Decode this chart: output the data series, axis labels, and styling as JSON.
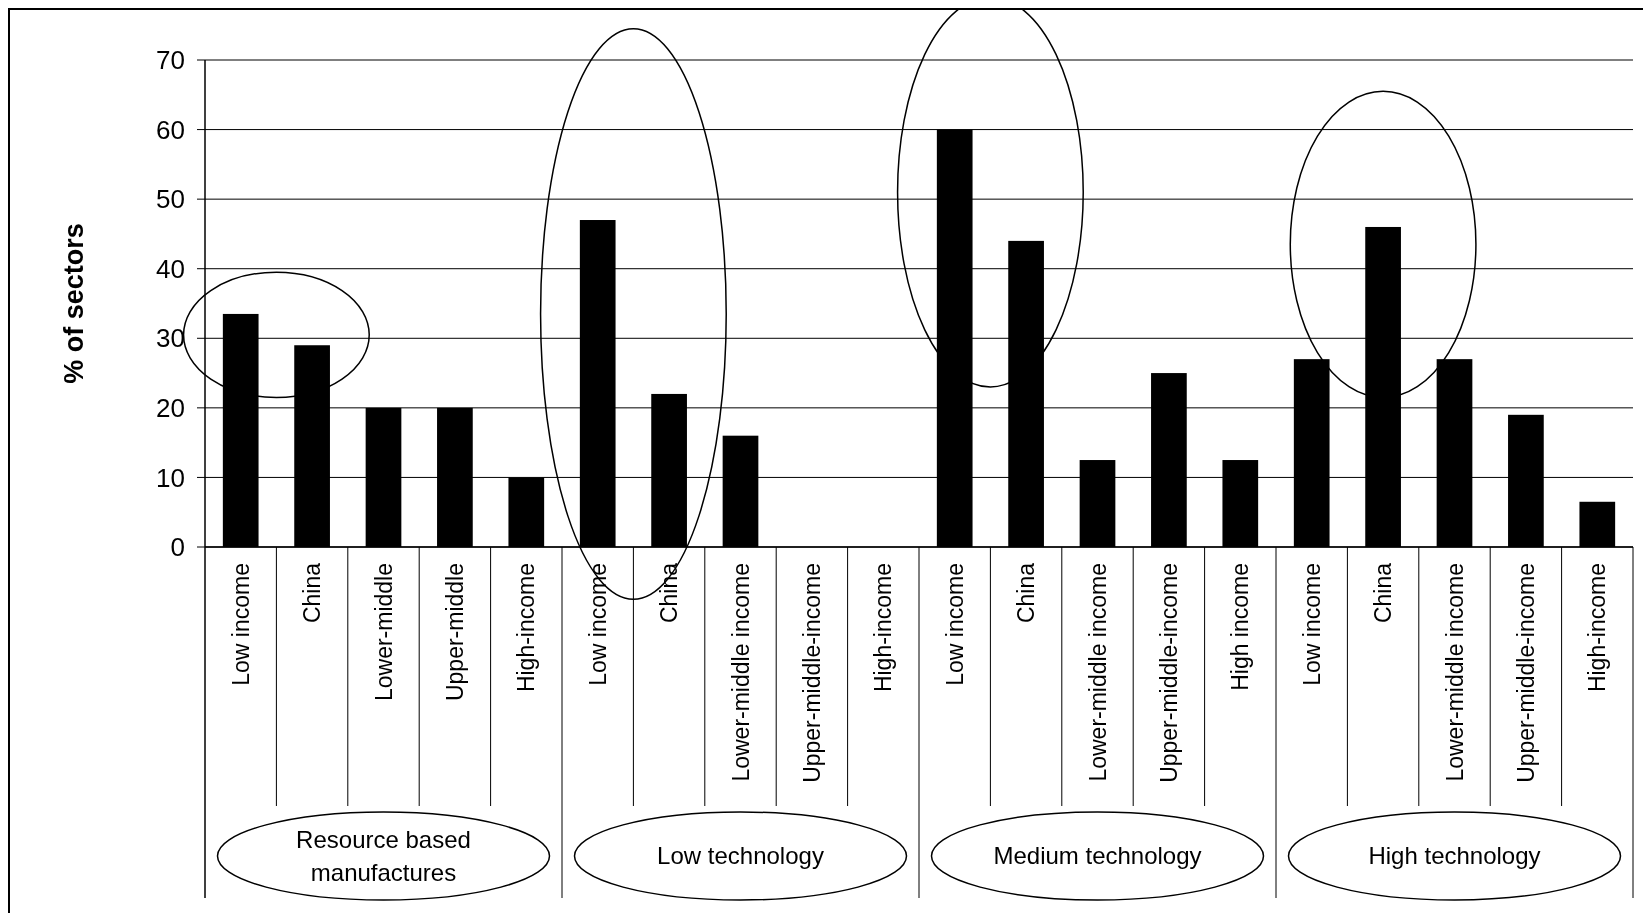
{
  "chart_data": {
    "type": "bar",
    "ylabel": "% of sectors",
    "categories": [
      "Low income",
      "China",
      "Lower-middle",
      "Upper-middle",
      "High-income",
      "Low income",
      "China",
      "Lower-middle income",
      "Upper-middle-income",
      "High-income",
      "Low income",
      "China",
      "Lower-middle income",
      "Upper-middle-income",
      "High income",
      "Low income",
      "China",
      "Lower-middle income",
      "Upper-middle-income",
      "High-income"
    ],
    "values": [
      33.5,
      29,
      20,
      20,
      10,
      47,
      22,
      16,
      0,
      0,
      60,
      44,
      12.5,
      25,
      12.5,
      27,
      46,
      27,
      19,
      6.5
    ],
    "color": "#000000",
    "ylim": [
      0,
      70
    ],
    "yticks": [
      0,
      10,
      20,
      30,
      40,
      50,
      60,
      70
    ],
    "grid": "y",
    "annotations": [
      "Resource based manufactures",
      "Low technology",
      "Medium technology",
      "High technology"
    ]
  }
}
